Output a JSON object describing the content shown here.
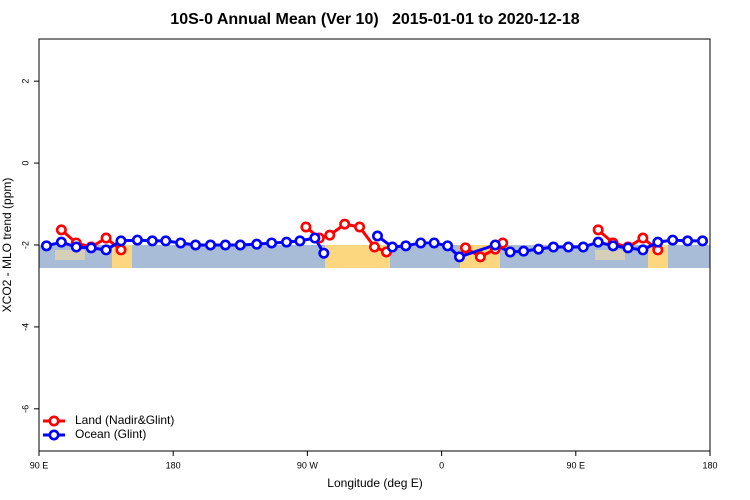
{
  "chart_data": {
    "type": "line",
    "title": "10S-0 Annual Mean (Ver 10)   2015-01-01 to 2020-12-18",
    "x_label": "Longitude (deg E)",
    "y_label": "XCO2 - MLO trend (ppm)",
    "xlim": [
      90,
      540
    ],
    "xticks": [
      {
        "value": 90,
        "label": "90 E"
      },
      {
        "value": 180,
        "label": "180"
      },
      {
        "value": 270,
        "label": "90 W"
      },
      {
        "value": 360,
        "label": "0"
      },
      {
        "value": 450,
        "label": "90 E"
      },
      {
        "value": 540,
        "label": "180"
      }
    ],
    "ylim": [
      -7.03,
      3.03
    ],
    "yticks": [
      2,
      0,
      -2,
      -4,
      -6
    ],
    "legend": "bottom-left",
    "series": [
      {
        "name": "Land (Nadir&Glint)",
        "color": "#ff0000",
        "x": [
          105,
          115,
          125,
          135,
          145,
          null,
          269,
          278,
          285,
          295,
          305,
          315,
          323,
          null,
          376,
          386,
          396,
          401,
          null,
          465,
          475,
          485,
          495,
          505
        ],
        "values": [
          -1.63,
          -1.95,
          -2.05,
          -1.83,
          -2.12,
          null,
          -1.56,
          -1.83,
          -1.76,
          -1.49,
          -1.56,
          -2.05,
          -2.17,
          null,
          -2.07,
          -2.29,
          -2.1,
          -1.95,
          null,
          -1.63,
          -1.95,
          -2.05,
          -1.83,
          -2.12
        ]
      },
      {
        "name": "Ocean (Glint)",
        "color": "#0000ff",
        "x": [
          95,
          105,
          115,
          125,
          135,
          145,
          156,
          166,
          175,
          185,
          195,
          205,
          215,
          225,
          236,
          246,
          256,
          265,
          275,
          281,
          null,
          317,
          327,
          336,
          346,
          355,
          364,
          372,
          396,
          406,
          415,
          425,
          435,
          445,
          455,
          465,
          475,
          485,
          495,
          505,
          515,
          525,
          535
        ],
        "values": [
          -2.02,
          -1.93,
          -2.05,
          -2.07,
          -2.12,
          -1.9,
          -1.88,
          -1.9,
          -1.9,
          -1.95,
          -2.0,
          -2.0,
          -2.0,
          -2.0,
          -1.98,
          -1.95,
          -1.93,
          -1.9,
          -1.83,
          -2.2,
          null,
          -1.78,
          -2.05,
          -2.02,
          -1.95,
          -1.95,
          -2.02,
          -2.29,
          -2.0,
          -2.17,
          -2.15,
          -2.1,
          -2.05,
          -2.05,
          -2.05,
          -1.93,
          -2.02,
          -2.07,
          -2.12,
          -1.93,
          -1.88,
          -1.9,
          -1.9
        ]
      }
    ]
  }
}
